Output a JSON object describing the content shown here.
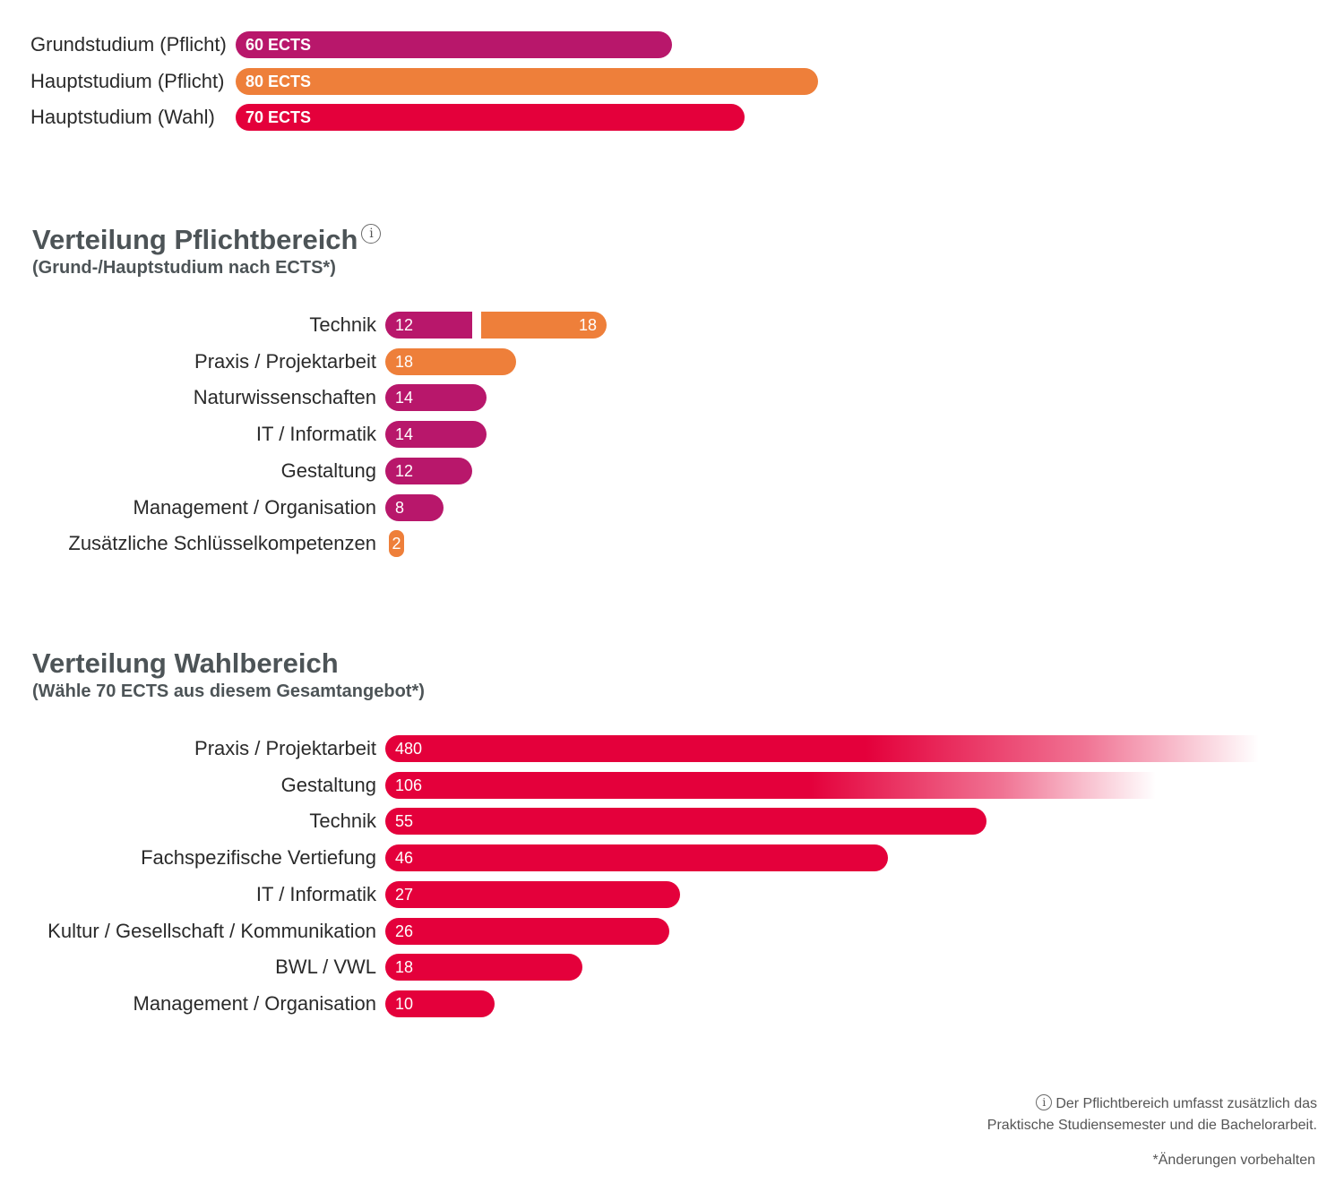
{
  "colors": {
    "grund": "#b8176b",
    "haupt_pflicht": "#ee7f3a",
    "wahl": "#e4003b",
    "title": "#4d5457"
  },
  "info_icon": "info-circle-icon",
  "chart_data": [
    {
      "type": "bar",
      "orientation": "horizontal",
      "categories": [
        "Grundstudium (Pflicht)",
        "Hauptstudium (Pflicht)",
        "Hauptstudium (Wahl)"
      ],
      "values": [
        60,
        80,
        70
      ],
      "value_labels": [
        "60 ECTS",
        "80 ECTS",
        "70 ECTS"
      ],
      "colors": [
        "#b8176b",
        "#ee7f3a",
        "#e4003b"
      ]
    },
    {
      "type": "bar",
      "orientation": "horizontal",
      "stacked": true,
      "title": "Verteilung Pflichtbereich",
      "subtitle": "(Grund-/Hauptstudium nach ECTS*)",
      "categories": [
        "Technik",
        "Praxis / Projektarbeit",
        "Naturwissenschaften",
        "IT / Informatik",
        "Gestaltung",
        "Management / Organisation",
        "Zusätzliche Schlüsselkompetenzen"
      ],
      "series": [
        {
          "color": "#b8176b",
          "values": [
            12,
            0,
            14,
            14,
            12,
            8,
            0
          ]
        },
        {
          "color": "#ee7f3a",
          "values": [
            18,
            18,
            0,
            0,
            0,
            0,
            2
          ]
        }
      ]
    },
    {
      "type": "bar",
      "orientation": "horizontal",
      "title": "Verteilung Wahlbereich",
      "subtitle": "(Wähle 70 ECTS aus diesem Gesamtangebot*)",
      "categories": [
        "Praxis / Projektarbeit",
        "Gestaltung",
        "Technik",
        "Fachspezifische Vertiefung",
        "IT / Informatik",
        "Kultur / Gesellschaft / Kommunikation",
        "BWL / VWL",
        "Management / Organisation"
      ],
      "values": [
        480,
        106,
        55,
        46,
        27,
        26,
        18,
        10
      ],
      "truncated": [
        true,
        true,
        false,
        false,
        false,
        false,
        false,
        false
      ],
      "color": "#e4003b"
    }
  ],
  "footnotes": {
    "info_line1": "Der Pflichtbereich umfasst zusätzlich das",
    "info_line2": "Praktische Studiensemester und die Bachelorarbeit.",
    "changes": "*Änderungen vorbehalten"
  }
}
